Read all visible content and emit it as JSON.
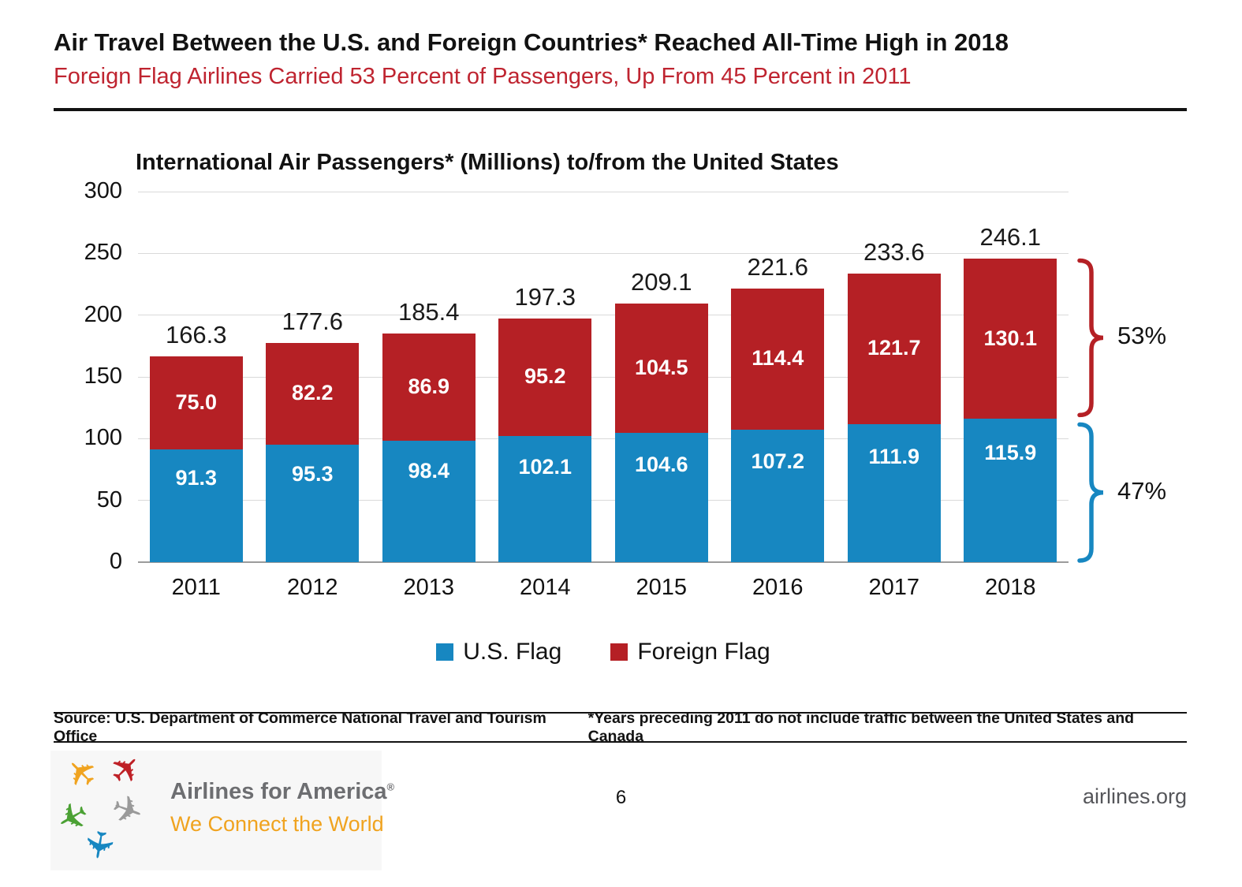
{
  "header": {
    "title": "Air Travel Between the U.S. and Foreign Countries* Reached All-Time High in 2018",
    "subtitle": "Foreign Flag Airlines Carried 53 Percent of Passengers, Up From 45 Percent in 2011"
  },
  "chart_data": {
    "type": "bar",
    "stacked": true,
    "title": "International Air Passengers* (Millions) to/from the United States",
    "categories": [
      "2011",
      "2012",
      "2013",
      "2014",
      "2015",
      "2016",
      "2017",
      "2018"
    ],
    "series": [
      {
        "name": "U.S. Flag",
        "color": "#1787c1",
        "values": [
          91.3,
          95.3,
          98.4,
          102.1,
          104.6,
          107.2,
          111.9,
          115.9
        ]
      },
      {
        "name": "Foreign Flag",
        "color": "#b52025",
        "values": [
          75.0,
          82.2,
          86.9,
          95.2,
          104.5,
          114.4,
          121.7,
          130.1
        ]
      }
    ],
    "totals": [
      166.3,
      177.6,
      185.4,
      197.3,
      209.1,
      221.6,
      233.6,
      246.1
    ],
    "ylim": [
      0,
      300
    ],
    "ytick_step": 50,
    "grid": true,
    "legend_position": "bottom",
    "annotations": [
      {
        "label": "53%",
        "series": "Foreign Flag"
      },
      {
        "label": "47%",
        "series": "U.S. Flag"
      }
    ]
  },
  "footer": {
    "source": "Source: U.S. Department of Commerce National Travel and Tourism Office",
    "note": "*Years preceding 2011 do not include traffic between the United States and Canada"
  },
  "branding": {
    "name": "Airlines for America",
    "registered": "®",
    "tagline": "We Connect the World",
    "page_number": "6",
    "website": "airlines.org"
  }
}
